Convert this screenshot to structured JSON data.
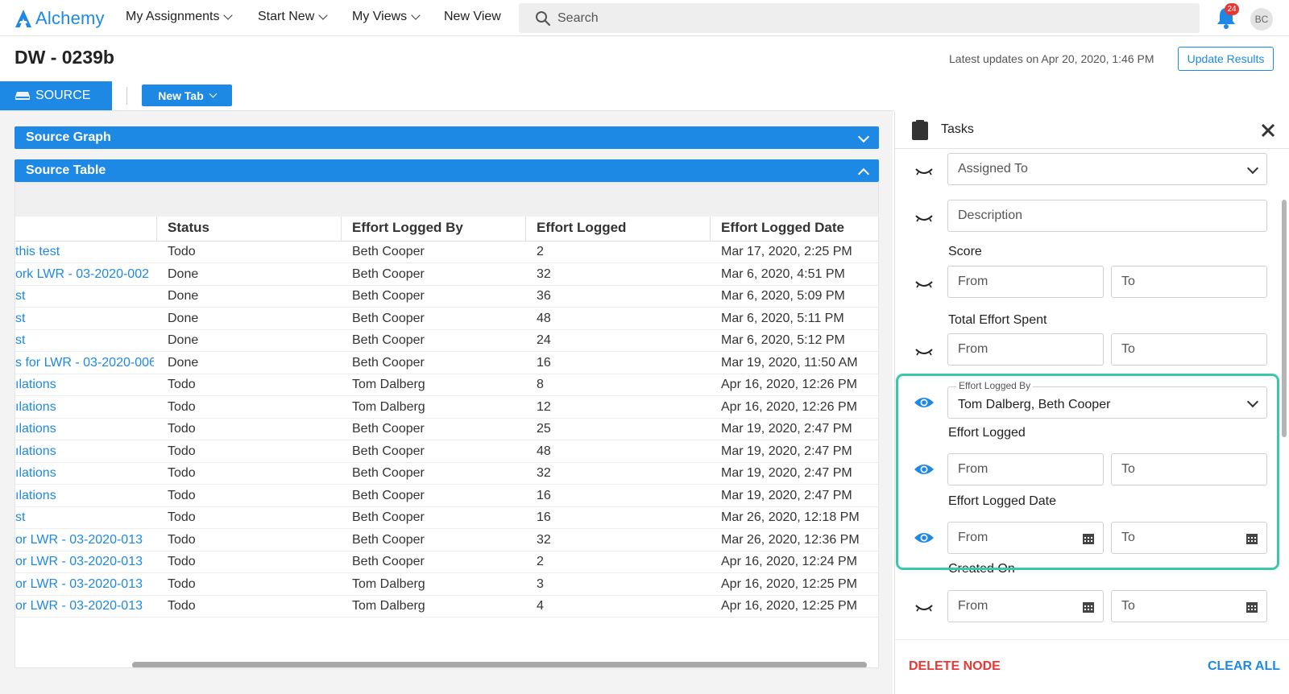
{
  "app": {
    "name": "Alchemy"
  },
  "nav": {
    "items": [
      {
        "label": "My Assignments",
        "dropdown": true
      },
      {
        "label": "Start New",
        "dropdown": true
      },
      {
        "label": "My Views",
        "dropdown": true
      },
      {
        "label": "New View",
        "dropdown": false
      }
    ],
    "search_placeholder": "Search",
    "notification_count": "24",
    "avatar_initials": "BC"
  },
  "header": {
    "title": "DW - 0239b",
    "latest_updates": "Latest updates on Apr 20, 2020, 1:46 PM",
    "update_button": "Update Results"
  },
  "tabs": {
    "source_label": "SOURCE",
    "new_tab_label": "New Tab"
  },
  "sections": {
    "graph_title": "Source Graph",
    "table_title": "Source Table"
  },
  "table": {
    "columns": [
      "Status",
      "Effort Logged By",
      "Effort Logged",
      "Effort Logged Date"
    ],
    "rows": [
      {
        "name": "this test",
        "status": "Todo",
        "by": "Beth Cooper",
        "effort": "2",
        "date": "Mar 17, 2020, 2:25 PM"
      },
      {
        "name": "ork LWR - 03-2020-002",
        "status": "Done",
        "by": "Beth Cooper",
        "effort": "32",
        "date": "Mar 6, 2020, 4:51 PM"
      },
      {
        "name": "st",
        "status": "Done",
        "by": "Beth Cooper",
        "effort": "36",
        "date": "Mar 6, 2020, 5:09 PM"
      },
      {
        "name": "st",
        "status": "Done",
        "by": "Beth Cooper",
        "effort": "48",
        "date": "Mar 6, 2020, 5:11 PM"
      },
      {
        "name": "st",
        "status": "Done",
        "by": "Beth Cooper",
        "effort": "24",
        "date": "Mar 6, 2020, 5:12 PM"
      },
      {
        "name": "s for LWR - 03-2020-006..",
        "status": "Done",
        "by": "Beth Cooper",
        "effort": "16",
        "date": "Mar 19, 2020, 11:50 AM"
      },
      {
        "name": "ılations",
        "status": "Todo",
        "by": "Tom Dalberg",
        "effort": "8",
        "date": "Apr 16, 2020, 12:26 PM"
      },
      {
        "name": "ılations",
        "status": "Todo",
        "by": "Tom Dalberg",
        "effort": "12",
        "date": "Apr 16, 2020, 12:26 PM"
      },
      {
        "name": "ılations",
        "status": "Todo",
        "by": "Beth Cooper",
        "effort": "25",
        "date": "Mar 19, 2020, 2:47 PM"
      },
      {
        "name": "ılations",
        "status": "Todo",
        "by": "Beth Cooper",
        "effort": "48",
        "date": "Mar 19, 2020, 2:47 PM"
      },
      {
        "name": "ılations",
        "status": "Todo",
        "by": "Beth Cooper",
        "effort": "32",
        "date": "Mar 19, 2020, 2:47 PM"
      },
      {
        "name": "ılations",
        "status": "Todo",
        "by": "Beth Cooper",
        "effort": "16",
        "date": "Mar 19, 2020, 2:47 PM"
      },
      {
        "name": "st",
        "status": "Todo",
        "by": "Beth Cooper",
        "effort": "16",
        "date": "Mar 26, 2020, 12:18 PM"
      },
      {
        "name": "or LWR - 03-2020-013",
        "status": "Todo",
        "by": "Beth Cooper",
        "effort": "32",
        "date": "Mar 26, 2020, 12:36 PM"
      },
      {
        "name": "or LWR - 03-2020-013",
        "status": "Todo",
        "by": "Beth Cooper",
        "effort": "2",
        "date": "Apr 16, 2020, 12:24 PM"
      },
      {
        "name": "or LWR - 03-2020-013",
        "status": "Todo",
        "by": "Tom Dalberg",
        "effort": "3",
        "date": "Apr 16, 2020, 12:25 PM"
      },
      {
        "name": "or LWR - 03-2020-013",
        "status": "Todo",
        "by": "Tom Dalberg",
        "effort": "4",
        "date": "Apr 16, 2020, 12:25 PM"
      }
    ]
  },
  "panel": {
    "title": "Tasks",
    "assigned_to_placeholder": "Assigned To",
    "description_placeholder": "Description",
    "score_label": "Score",
    "total_effort_label": "Total Effort Spent",
    "effort_logged_by_label": "Effort Logged By",
    "effort_logged_by_value": "Tom Dalberg, Beth Cooper",
    "effort_logged_label": "Effort Logged",
    "effort_logged_date_label": "Effort Logged Date",
    "created_on_label": "Created On",
    "from_placeholder": "From",
    "to_placeholder": "To",
    "delete_button": "DELETE NODE",
    "clear_button": "CLEAR ALL"
  },
  "colors": {
    "accent": "#1e88e5",
    "highlight": "#39c9a6",
    "danger": "#e53935"
  }
}
